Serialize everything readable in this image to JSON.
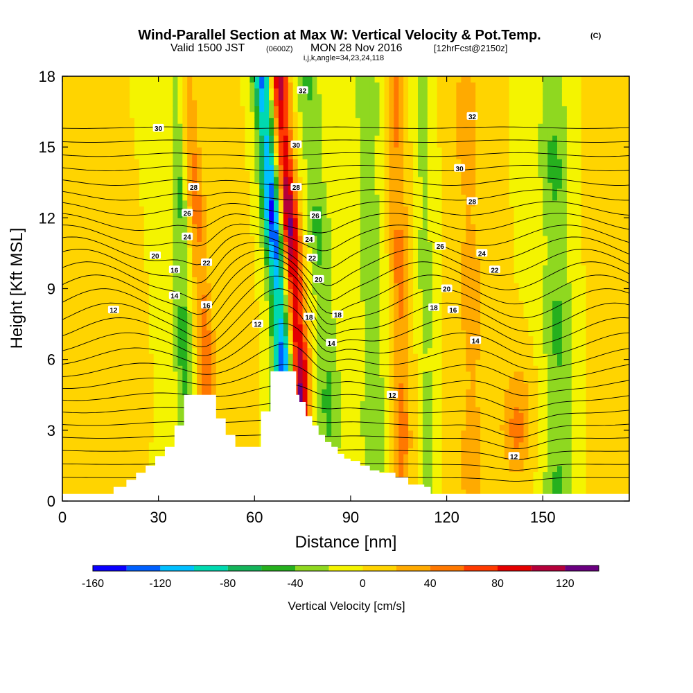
{
  "chart_data": {
    "type": "heatmap",
    "title": "Wind-Parallel Section at Max W: Vertical Velocity & Pot.Temp.",
    "title_mark": "(C)",
    "subtitle_main": "Valid 1500 JST",
    "subtitle_utc": "(0600Z)",
    "subtitle_date": "MON 28 Nov 2016",
    "subtitle_fcst": "[12hrFcst@2150z]",
    "subtitle_indices": "i,j,k,angle=34,23,24,118",
    "xlabel": "Distance [nm]",
    "ylabel": "Height [Kft MSL]",
    "xlim": [
      0,
      177
    ],
    "ylim": [
      0,
      18
    ],
    "xticks": [
      0,
      30,
      60,
      90,
      120,
      150
    ],
    "yticks": [
      0,
      3,
      6,
      9,
      12,
      15,
      18
    ],
    "colorbar_label": "Vertical Velocity [cm/s]",
    "colorbar_ticks": [
      -160,
      -120,
      -80,
      -40,
      0,
      40,
      80,
      120
    ],
    "colorbar_levels": [
      -160,
      -140,
      -120,
      -100,
      -80,
      -60,
      -40,
      -20,
      0,
      20,
      40,
      60,
      80,
      100,
      120,
      140
    ],
    "colorbar_colors": [
      "#0a00ff",
      "#0060ff",
      "#00bfff",
      "#00d9b0",
      "#14b45a",
      "#26b01e",
      "#8fd820",
      "#f4f400",
      "#ffd400",
      "#ffaa00",
      "#ff7800",
      "#ff3a00",
      "#e40000",
      "#b4003a",
      "#6a0080"
    ],
    "w_bands": [
      {
        "x": 6,
        "halfwidth": 7,
        "value": 10
      },
      {
        "x": 38,
        "halfwidth": 3,
        "value": -50
      },
      {
        "x": 45,
        "halfwidth": 3,
        "value": 55
      },
      {
        "x": 55,
        "halfwidth": 4,
        "value": 20
      },
      {
        "x": 69,
        "halfwidth": 3,
        "value": -150
      },
      {
        "x": 74,
        "halfwidth": 3,
        "value": 130
      },
      {
        "x": 83,
        "halfwidth": 4,
        "value": -45
      },
      {
        "x": 97,
        "halfwidth": 4,
        "value": -40
      },
      {
        "x": 106,
        "halfwidth": 3,
        "value": 50
      },
      {
        "x": 114,
        "halfwidth": 3,
        "value": -30
      },
      {
        "x": 128,
        "halfwidth": 5,
        "value": 30
      },
      {
        "x": 142,
        "halfwidth": 5,
        "value": 60
      },
      {
        "x": 155,
        "halfwidth": 5,
        "value": -45
      },
      {
        "x": 170,
        "halfwidth": 5,
        "value": 15
      }
    ],
    "terrain": {
      "x": [
        0,
        16,
        20,
        23,
        26,
        29,
        32,
        35,
        38,
        45,
        48,
        51,
        54,
        60,
        62,
        65,
        71,
        73,
        74,
        76,
        78,
        80,
        82,
        84,
        86,
        88,
        90,
        93,
        96,
        99,
        102,
        104,
        108,
        113,
        115,
        177
      ],
      "height": [
        0.3,
        0.6,
        0.9,
        1.2,
        1.5,
        1.9,
        2.3,
        3.2,
        4.5,
        4.5,
        3.5,
        2.8,
        2.3,
        2.3,
        3.8,
        5.5,
        5.5,
        4.5,
        4.2,
        3.6,
        3.2,
        2.8,
        2.5,
        2.3,
        2.0,
        1.8,
        1.7,
        1.5,
        1.3,
        1.2,
        1.2,
        1.0,
        0.7,
        0.6,
        0.3,
        0.3
      ]
    },
    "theta_contour_labels": [
      {
        "text": "30",
        "x": 30,
        "y": 15.8
      },
      {
        "text": "28",
        "x": 41,
        "y": 13.3
      },
      {
        "text": "26",
        "x": 39,
        "y": 12.2
      },
      {
        "text": "24",
        "x": 39,
        "y": 11.2
      },
      {
        "text": "20",
        "x": 29,
        "y": 10.4
      },
      {
        "text": "16",
        "x": 35,
        "y": 9.8
      },
      {
        "text": "22",
        "x": 45,
        "y": 10.1
      },
      {
        "text": "14",
        "x": 35,
        "y": 8.7
      },
      {
        "text": "16",
        "x": 45,
        "y": 8.3
      },
      {
        "text": "12",
        "x": 16,
        "y": 8.1
      },
      {
        "text": "12",
        "x": 61,
        "y": 7.5
      },
      {
        "text": "32",
        "x": 75,
        "y": 17.4
      },
      {
        "text": "30",
        "x": 73,
        "y": 15.1
      },
      {
        "text": "28",
        "x": 73,
        "y": 13.3
      },
      {
        "text": "26",
        "x": 79,
        "y": 12.1
      },
      {
        "text": "24",
        "x": 77,
        "y": 11.1
      },
      {
        "text": "22",
        "x": 78,
        "y": 10.3
      },
      {
        "text": "20",
        "x": 80,
        "y": 9.4
      },
      {
        "text": "18",
        "x": 77,
        "y": 7.8
      },
      {
        "text": "18",
        "x": 86,
        "y": 7.9
      },
      {
        "text": "14",
        "x": 84,
        "y": 6.7
      },
      {
        "text": "12",
        "x": 103,
        "y": 4.5
      },
      {
        "text": "32",
        "x": 128,
        "y": 16.3
      },
      {
        "text": "30",
        "x": 124,
        "y": 14.1
      },
      {
        "text": "28",
        "x": 128,
        "y": 12.7
      },
      {
        "text": "26",
        "x": 118,
        "y": 10.8
      },
      {
        "text": "24",
        "x": 131,
        "y": 10.5
      },
      {
        "text": "22",
        "x": 135,
        "y": 9.8
      },
      {
        "text": "20",
        "x": 120,
        "y": 9.0
      },
      {
        "text": "18",
        "x": 116,
        "y": 8.2
      },
      {
        "text": "16",
        "x": 122,
        "y": 8.1
      },
      {
        "text": "14",
        "x": 129,
        "y": 6.8
      },
      {
        "text": "12",
        "x": 141,
        "y": 1.9
      }
    ]
  }
}
